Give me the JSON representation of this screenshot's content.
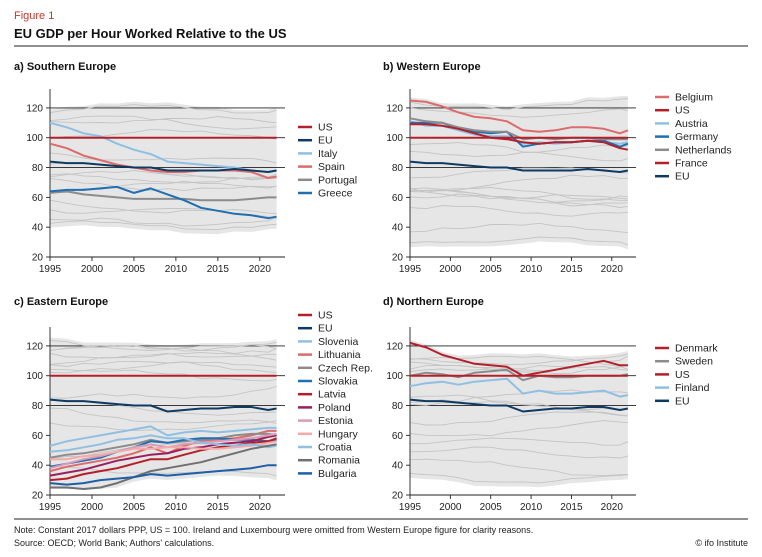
{
  "figure": {
    "label": "Figure 1",
    "title": "EU GDP per Hour Worked Relative to the US",
    "note": "Note: Constant 2017 dollars PPP, US = 100. Ireland and Luxembourg were omitted from Western Europe figure for clarity reasons.",
    "source": "Source: OECD; World Bank; Authors' calculations.",
    "credit": "© ifo Institute"
  },
  "colors": {
    "label_red": "#c0392b",
    "band": "#e6e6e6",
    "background_lines": "#c4c4c4",
    "gridline": "#222222",
    "US": "#b3202a",
    "EU": "#0d3b66"
  },
  "chart_data": [
    {
      "type": "line",
      "title": "a) Southern Europe",
      "x": [
        1995,
        1997,
        1999,
        2001,
        2003,
        2005,
        2007,
        2009,
        2011,
        2013,
        2015,
        2017,
        2019,
        2021,
        2022
      ],
      "xticks": [
        1995,
        2000,
        2005,
        2010,
        2015,
        2020
      ],
      "yticks": [
        20,
        40,
        60,
        80,
        100,
        120
      ],
      "ylim": [
        20,
        130
      ],
      "xlim": [
        1995,
        2023
      ],
      "gridlines": [
        80,
        100,
        120
      ],
      "legend_position": "right",
      "series": [
        {
          "name": "US",
          "color": "#b3202a",
          "values": [
            100,
            100,
            100,
            100,
            100,
            100,
            100,
            100,
            100,
            100,
            100,
            100,
            100,
            100,
            100
          ]
        },
        {
          "name": "EU",
          "color": "#0d3b66",
          "values": [
            84,
            83,
            83,
            82,
            81,
            80,
            80,
            78,
            78,
            78,
            78,
            79,
            78,
            77,
            78
          ]
        },
        {
          "name": "Italy",
          "color": "#8fc0e3",
          "values": [
            110,
            107,
            103,
            101,
            96,
            92,
            89,
            84,
            83,
            82,
            81,
            80,
            78,
            77,
            78
          ]
        },
        {
          "name": "Spain",
          "color": "#dc6b6b",
          "values": [
            96,
            93,
            88,
            85,
            82,
            80,
            78,
            77,
            77,
            78,
            78,
            78,
            77,
            73,
            74
          ]
        },
        {
          "name": "Portugal",
          "color": "#8c8c8c",
          "values": [
            63,
            64,
            62,
            61,
            60,
            59,
            59,
            59,
            59,
            58,
            58,
            58,
            59,
            60,
            60
          ]
        },
        {
          "name": "Greece",
          "color": "#1f6fb2",
          "values": [
            64,
            65,
            65,
            66,
            67,
            63,
            66,
            62,
            58,
            53,
            51,
            49,
            48,
            46,
            47
          ]
        }
      ]
    },
    {
      "type": "line",
      "title": "b) Western Europe",
      "x": [
        1995,
        1997,
        1999,
        2001,
        2003,
        2005,
        2007,
        2009,
        2011,
        2013,
        2015,
        2017,
        2019,
        2021,
        2022
      ],
      "xticks": [
        1995,
        2000,
        2005,
        2010,
        2015,
        2020
      ],
      "yticks": [
        20,
        40,
        60,
        80,
        100,
        120
      ],
      "ylim": [
        20,
        130
      ],
      "xlim": [
        1995,
        2023
      ],
      "gridlines": [
        80,
        100,
        120
      ],
      "legend_position": "right",
      "series": [
        {
          "name": "Belgium",
          "color": "#dc6b6b",
          "values": [
            125,
            124,
            121,
            117,
            114,
            113,
            111,
            105,
            104,
            105,
            107,
            107,
            106,
            103,
            105
          ]
        },
        {
          "name": "US",
          "color": "#b3202a",
          "values": [
            100,
            100,
            100,
            100,
            100,
            100,
            100,
            100,
            100,
            100,
            100,
            100,
            100,
            100,
            100
          ]
        },
        {
          "name": "Austria",
          "color": "#8fc0e3",
          "values": [
            111,
            108,
            108,
            105,
            102,
            101,
            101,
            96,
            97,
            96,
            97,
            98,
            97,
            96,
            97
          ]
        },
        {
          "name": "Germany",
          "color": "#1f6fb2",
          "values": [
            110,
            110,
            110,
            106,
            104,
            103,
            104,
            94,
            96,
            97,
            97,
            98,
            98,
            94,
            96
          ]
        },
        {
          "name": "Netherlands",
          "color": "#8c8c8c",
          "values": [
            113,
            111,
            110,
            107,
            105,
            104,
            104,
            99,
            100,
            99,
            100,
            100,
            99,
            99,
            99
          ]
        },
        {
          "name": "France",
          "color": "#b3202a",
          "values": [
            109,
            109,
            108,
            106,
            103,
            100,
            99,
            97,
            96,
            97,
            97,
            98,
            97,
            93,
            92
          ]
        },
        {
          "name": "EU",
          "color": "#0d3b66",
          "values": [
            84,
            83,
            83,
            82,
            81,
            80,
            80,
            78,
            78,
            78,
            78,
            79,
            78,
            77,
            78
          ]
        }
      ]
    },
    {
      "type": "line",
      "title": "c) Eastern Europe",
      "x": [
        1995,
        1997,
        1999,
        2001,
        2003,
        2005,
        2007,
        2009,
        2011,
        2013,
        2015,
        2017,
        2019,
        2021,
        2022
      ],
      "xticks": [
        1995,
        2000,
        2005,
        2010,
        2015,
        2020
      ],
      "yticks": [
        20,
        40,
        60,
        80,
        100,
        120
      ],
      "ylim": [
        20,
        130
      ],
      "xlim": [
        1995,
        2023
      ],
      "gridlines": [
        80,
        100,
        120
      ],
      "legend_position": "right",
      "series": [
        {
          "name": "US",
          "color": "#b3202a",
          "values": [
            100,
            100,
            100,
            100,
            100,
            100,
            100,
            100,
            100,
            100,
            100,
            100,
            100,
            100,
            100
          ]
        },
        {
          "name": "EU",
          "color": "#0d3b66",
          "values": [
            84,
            83,
            83,
            82,
            81,
            80,
            80,
            76,
            77,
            78,
            78,
            79,
            79,
            77,
            78
          ]
        },
        {
          "name": "Slovenia",
          "color": "#8fc0e3",
          "values": [
            53,
            56,
            58,
            60,
            62,
            64,
            66,
            60,
            62,
            63,
            62,
            63,
            64,
            65,
            65
          ]
        },
        {
          "name": "Lithuania",
          "color": "#dc6b6b",
          "values": [
            36,
            39,
            41,
            43,
            45,
            48,
            52,
            48,
            53,
            56,
            57,
            58,
            60,
            63,
            63
          ]
        },
        {
          "name": "Czech Rep.",
          "color": "#8c8c8c",
          "values": [
            45,
            47,
            48,
            50,
            52,
            54,
            57,
            55,
            56,
            57,
            58,
            60,
            61,
            61,
            60
          ]
        },
        {
          "name": "Slovakia",
          "color": "#1f6fb2",
          "values": [
            39,
            41,
            43,
            45,
            49,
            52,
            56,
            55,
            57,
            58,
            58,
            57,
            57,
            56,
            57
          ]
        },
        {
          "name": "Latvia",
          "color": "#b3202a",
          "values": [
            30,
            31,
            34,
            36,
            38,
            41,
            44,
            44,
            47,
            50,
            52,
            53,
            55,
            56,
            58
          ]
        },
        {
          "name": "Poland",
          "color": "#9b1f5c",
          "values": [
            33,
            35,
            37,
            40,
            43,
            45,
            47,
            48,
            51,
            52,
            54,
            55,
            56,
            59,
            60
          ]
        },
        {
          "name": "Estonia",
          "color": "#d99bb5",
          "values": [
            38,
            41,
            44,
            46,
            49,
            52,
            54,
            52,
            54,
            55,
            56,
            57,
            58,
            60,
            61
          ]
        },
        {
          "name": "Hungary",
          "color": "#f2aaaa",
          "values": [
            44,
            44,
            46,
            47,
            49,
            51,
            51,
            52,
            52,
            51,
            51,
            52,
            53,
            55,
            56
          ]
        },
        {
          "name": "Croatia",
          "color": "#8fc0e3",
          "values": [
            49,
            50,
            52,
            54,
            57,
            58,
            60,
            58,
            58,
            55,
            54,
            53,
            54,
            52,
            53
          ]
        },
        {
          "name": "Romania",
          "color": "#707070",
          "values": [
            25,
            25,
            24,
            25,
            28,
            32,
            36,
            38,
            40,
            42,
            45,
            48,
            51,
            53,
            54
          ]
        },
        {
          "name": "Bulgaria",
          "color": "#1f5fa6",
          "values": [
            28,
            27,
            28,
            30,
            31,
            32,
            34,
            33,
            34,
            35,
            36,
            37,
            38,
            40,
            40
          ]
        }
      ]
    },
    {
      "type": "line",
      "title": "d) Northern Europe",
      "x": [
        1995,
        1997,
        1999,
        2001,
        2003,
        2005,
        2007,
        2009,
        2011,
        2013,
        2015,
        2017,
        2019,
        2021,
        2022
      ],
      "xticks": [
        1995,
        2000,
        2005,
        2010,
        2015,
        2020
      ],
      "yticks": [
        20,
        40,
        60,
        80,
        100,
        120
      ],
      "ylim": [
        20,
        130
      ],
      "xlim": [
        1995,
        2023
      ],
      "gridlines": [
        80,
        100,
        120
      ],
      "legend_position": "right",
      "series": [
        {
          "name": "Denmark",
          "color": "#b3202a",
          "values": [
            122,
            119,
            114,
            111,
            108,
            107,
            106,
            100,
            102,
            104,
            106,
            108,
            110,
            107,
            107
          ]
        },
        {
          "name": "Sweden",
          "color": "#8c8c8c",
          "values": [
            100,
            102,
            101,
            99,
            102,
            103,
            104,
            97,
            100,
            99,
            99,
            100,
            100,
            100,
            101
          ]
        },
        {
          "name": "US",
          "color": "#b3202a",
          "values": [
            100,
            100,
            100,
            100,
            100,
            100,
            100,
            100,
            100,
            100,
            100,
            100,
            100,
            100,
            100
          ]
        },
        {
          "name": "Finland",
          "color": "#8fc0e3",
          "values": [
            93,
            95,
            96,
            94,
            96,
            97,
            98,
            88,
            90,
            88,
            88,
            89,
            90,
            86,
            87
          ]
        },
        {
          "name": "EU",
          "color": "#0d3b66",
          "values": [
            84,
            83,
            83,
            82,
            81,
            80,
            80,
            76,
            77,
            78,
            78,
            79,
            79,
            77,
            78
          ]
        }
      ]
    }
  ]
}
